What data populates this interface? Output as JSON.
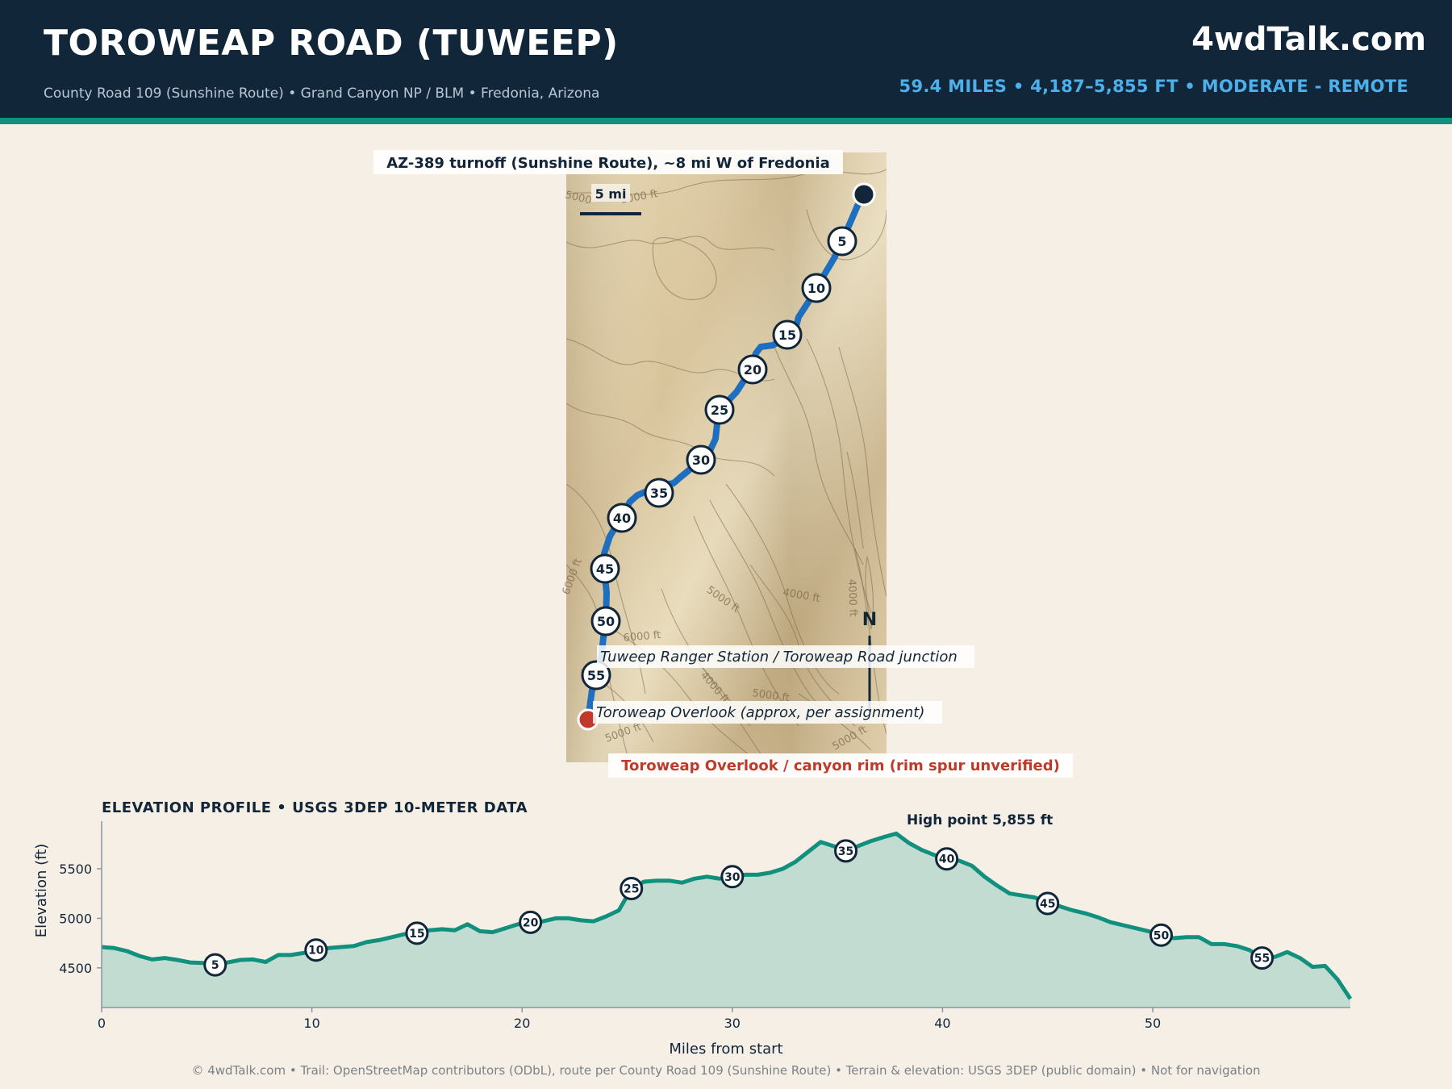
{
  "header": {
    "title": "TOROWEAP ROAD (TUWEEP)",
    "subtitle": "County Road 109 (Sunshine Route)  •  Grand Canyon NP / BLM  •  Fredonia, Arizona",
    "brand": "4wdTalk.com",
    "stats": "59.4 MILES  •  4,187–5,855 FT  •  MODERATE - REMOTE"
  },
  "map": {
    "start_label": "AZ-389 turnoff (Sunshine Route), ~8 mi W of Fredonia",
    "scale_label": "5 mi",
    "north_label": "N",
    "ranger_label": "Tuweep Ranger Station / Toroweap Road junction",
    "overlook_label": "Toroweap Overlook (approx, per assignment)",
    "end_label": "Toroweap Overlook / canyon rim (rim spur unverified)",
    "contour_labels": [
      "5000",
      "5000 ft",
      "5000 ft",
      "5000 ft",
      "5000 ft",
      "5000 ft",
      "6000 ft",
      "6000 ft",
      "6000 ft",
      "4000 ft",
      "4000 ft",
      "4000 ft"
    ],
    "mile_markers": [
      "5",
      "10",
      "15",
      "20",
      "25",
      "30",
      "35",
      "40",
      "45",
      "50",
      "55"
    ],
    "colors": {
      "route": "#1f6fc0",
      "start": "#12263a",
      "end": "#c0392b",
      "terrain_light": "#efe3c6",
      "terrain_dark": "#c8b48f"
    }
  },
  "profile": {
    "title": "ELEVATION PROFILE  •  USGS 3DEP 10-METER DATA",
    "high_point_label": "High point 5,855 ft",
    "xlabel": "Miles from start",
    "ylabel": "Elevation (ft)",
    "marker_labels": [
      "5",
      "10",
      "15",
      "20",
      "25",
      "30",
      "35",
      "40",
      "45",
      "50",
      "55"
    ]
  },
  "chart_data": {
    "type": "area",
    "title": "ELEVATION PROFILE  •  USGS 3DEP 10-METER DATA",
    "xlabel": "Miles from start",
    "ylabel": "Elevation (ft)",
    "xlim": [
      0,
      59.4
    ],
    "ylim": [
      4100,
      5980
    ],
    "xticks": [
      0,
      10,
      20,
      30,
      40,
      50
    ],
    "yticks": [
      4500,
      5000,
      5500
    ],
    "grid": false,
    "annotations": [
      "High point 5,855 ft"
    ],
    "series": [
      {
        "x": [
          0,
          0.6,
          1.2,
          1.8,
          2.4,
          3.0,
          3.6,
          4.2,
          4.8,
          5.4,
          6.0,
          6.6,
          7.2,
          7.8,
          8.4,
          9.0,
          9.6,
          10.2,
          10.8,
          11.4,
          12.0,
          12.6,
          13.2,
          13.8,
          14.4,
          15.0,
          15.6,
          16.2,
          16.8,
          17.4,
          18.0,
          18.6,
          19.2,
          19.8,
          20.4,
          21.0,
          21.6,
          22.2,
          22.8,
          23.4,
          24.0,
          24.6,
          25.2,
          25.8,
          26.4,
          27.0,
          27.6,
          28.2,
          28.8,
          29.4,
          30.0,
          30.6,
          31.2,
          31.8,
          32.4,
          33.0,
          33.6,
          34.2,
          34.8,
          35.4,
          36.0,
          36.6,
          37.2,
          37.8,
          38.4,
          39.0,
          39.6,
          40.2,
          40.8,
          41.4,
          42.0,
          42.6,
          43.2,
          43.8,
          44.4,
          45.0,
          45.6,
          46.2,
          46.8,
          47.4,
          48.0,
          48.6,
          49.2,
          49.8,
          50.4,
          51.0,
          51.6,
          52.2,
          52.8,
          53.4,
          54.0,
          54.6,
          55.2,
          55.8,
          56.4,
          57.0,
          57.6,
          58.2,
          58.8,
          59.4
        ],
        "y": [
          4710,
          4700,
          4670,
          4620,
          4585,
          4600,
          4580,
          4555,
          4550,
          4530,
          4555,
          4580,
          4585,
          4560,
          4630,
          4630,
          4650,
          4680,
          4700,
          4710,
          4720,
          4760,
          4780,
          4810,
          4840,
          4850,
          4880,
          4890,
          4880,
          4940,
          4870,
          4860,
          4900,
          4940,
          4960,
          4970,
          5000,
          5000,
          4980,
          4970,
          5020,
          5080,
          5300,
          5370,
          5380,
          5380,
          5360,
          5400,
          5420,
          5400,
          5420,
          5440,
          5440,
          5460,
          5500,
          5570,
          5670,
          5770,
          5730,
          5680,
          5730,
          5780,
          5820,
          5855,
          5760,
          5690,
          5640,
          5600,
          5580,
          5530,
          5420,
          5330,
          5250,
          5230,
          5210,
          5150,
          5120,
          5080,
          5050,
          5010,
          4960,
          4930,
          4900,
          4870,
          4830,
          4800,
          4810,
          4810,
          4740,
          4740,
          4720,
          4680,
          4600,
          4610,
          4660,
          4600,
          4510,
          4520,
          4380,
          4187
        ]
      }
    ],
    "markers": [
      5,
      10,
      15,
      20,
      25,
      30,
      35,
      40,
      45,
      50,
      55
    ]
  }
}
